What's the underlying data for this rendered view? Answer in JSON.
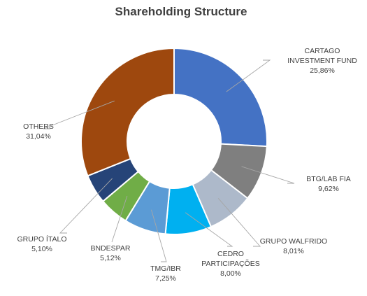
{
  "chart_data": {
    "type": "pie",
    "variant": "donut",
    "title": "Shareholding Structure",
    "slices": [
      {
        "name": "CARTAGO INVESTMENT FUND",
        "label_lines": [
          "CARTAGO",
          "INVESTMENT FUND"
        ],
        "value": 25.86,
        "value_label": "25,86%",
        "color": "#4472C4"
      },
      {
        "name": "BTG/LAB FIA",
        "label_lines": [
          "BTG/LAB FIA"
        ],
        "value": 9.62,
        "value_label": "9,62%",
        "color": "#7F7F7F"
      },
      {
        "name": "GRUPO WALFRIDO",
        "label_lines": [
          "GRUPO WALFRIDO"
        ],
        "value": 8.01,
        "value_label": "8,01%",
        "color": "#ADB9CA"
      },
      {
        "name": "CEDRO PARTICIPAÇÕES",
        "label_lines": [
          "CEDRO",
          "PARTICIPAÇÕES"
        ],
        "value": 8.0,
        "value_label": "8,00%",
        "color": "#00B0F0"
      },
      {
        "name": "TMG/IBR",
        "label_lines": [
          "TMG/IBR"
        ],
        "value": 7.25,
        "value_label": "7,25%",
        "color": "#5B9BD5"
      },
      {
        "name": "BNDESPAR",
        "label_lines": [
          "BNDESPAR"
        ],
        "value": 5.12,
        "value_label": "5,12%",
        "color": "#70AD47"
      },
      {
        "name": "GRUPO ÍTALO",
        "label_lines": [
          "GRUPO ÍTALO"
        ],
        "value": 5.1,
        "value_label": "5,10%",
        "color": "#264478"
      },
      {
        "name": "OTHERS",
        "label_lines": [
          "OTHERS"
        ],
        "value": 31.04,
        "value_label": "31,04%",
        "color": "#9E480E"
      }
    ],
    "legend": "none"
  }
}
